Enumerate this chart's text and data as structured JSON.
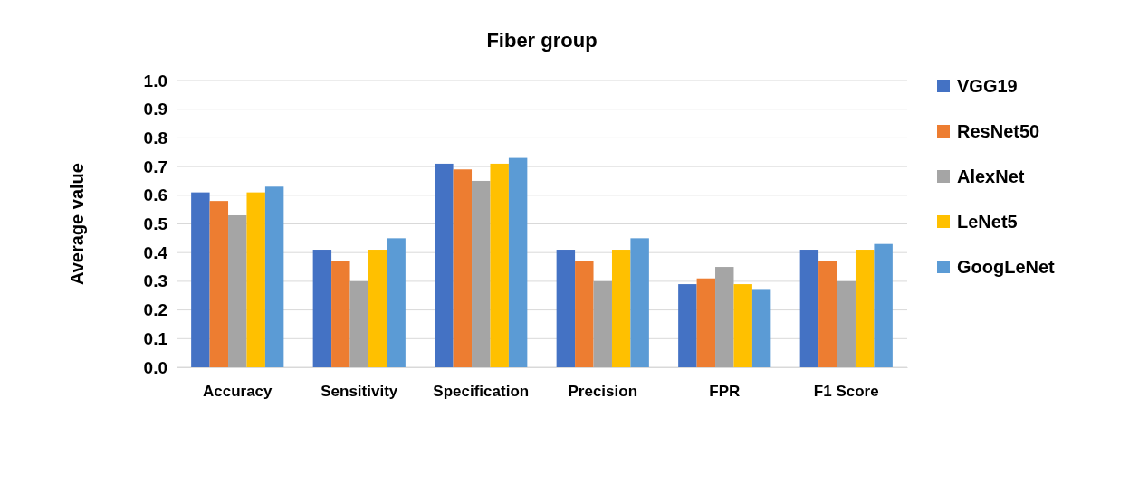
{
  "chart_data": {
    "type": "bar",
    "title": "Fiber group",
    "ylabel": "Average value",
    "categories": [
      "Accuracy",
      "Sensitivity",
      "Specification",
      "Precision",
      "FPR",
      "F1 Score"
    ],
    "series": [
      {
        "name": "VGG19",
        "color": "#4472c4",
        "values": [
          0.61,
          0.41,
          0.71,
          0.41,
          0.29,
          0.41
        ]
      },
      {
        "name": "ResNet50",
        "color": "#ed7d31",
        "values": [
          0.58,
          0.37,
          0.69,
          0.37,
          0.31,
          0.37
        ]
      },
      {
        "name": "AlexNet",
        "color": "#a5a5a5",
        "values": [
          0.53,
          0.3,
          0.65,
          0.3,
          0.35,
          0.3
        ]
      },
      {
        "name": "LeNet5",
        "color": "#ffc000",
        "values": [
          0.61,
          0.41,
          0.71,
          0.41,
          0.29,
          0.41
        ]
      },
      {
        "name": "GoogLeNet",
        "color": "#5b9bd5",
        "values": [
          0.63,
          0.45,
          0.73,
          0.45,
          0.27,
          0.43
        ]
      }
    ],
    "ylim": [
      0,
      1
    ],
    "yticks": [
      {
        "value": 0,
        "label": "0.0"
      },
      {
        "value": 0.1,
        "label": "0.1"
      },
      {
        "value": 0.2,
        "label": "0.2"
      },
      {
        "value": 0.3,
        "label": "0.3"
      },
      {
        "value": 0.4,
        "label": "0.4"
      },
      {
        "value": 0.5,
        "label": "0.5"
      },
      {
        "value": 0.6,
        "label": "0.6"
      },
      {
        "value": 0.7,
        "label": "0.7"
      },
      {
        "value": 0.8,
        "label": "0.8"
      },
      {
        "value": 0.9,
        "label": "0.9"
      },
      {
        "value": 1,
        "label": "1.0"
      }
    ],
    "grid": "y",
    "legend": "right"
  }
}
